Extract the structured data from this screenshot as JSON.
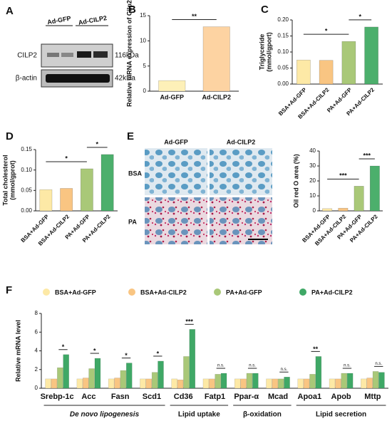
{
  "panel_labels": [
    "A",
    "B",
    "C",
    "D",
    "E",
    "F"
  ],
  "blot": {
    "lanes": [
      "Ad-GFP",
      "Ad-CILP2"
    ],
    "rows": [
      {
        "name": "CILP2",
        "size": "116kDa"
      },
      {
        "name": "β-actin",
        "size": "42kDa"
      }
    ]
  },
  "micrographs": {
    "columns": [
      "Ad-GFP",
      "Ad-CILP2"
    ],
    "rows": [
      "BSA",
      "PA"
    ]
  },
  "chart_data": [
    {
      "type": "bar",
      "ylabel": "Relative mRNA expression of Cilp2",
      "categories": [
        "Ad-GFP",
        "Ad-CILP2"
      ],
      "values": [
        2.1,
        12.8
      ],
      "colors": [
        "#fdf0b8",
        "#fdd3a2"
      ],
      "ylim": [
        0,
        15
      ],
      "yticks": [
        0,
        5,
        10,
        15
      ],
      "annotations": [
        {
          "text": "**",
          "pair": [
            "Ad-GFP",
            "Ad-CILP2"
          ]
        }
      ]
    },
    {
      "type": "bar",
      "ylabel": [
        "Triglyceride",
        "(mmol/gport)"
      ],
      "categories": [
        "BSA+Ad-GFP",
        "BSA+Ad-CILP2",
        "PA+Ad-GFP",
        "PA+Ad-CILP2"
      ],
      "values": [
        0.075,
        0.074,
        0.133,
        0.178
      ],
      "colors": [
        "#fde9a6",
        "#f9c582",
        "#a9c878",
        "#4caf6c"
      ],
      "ylim": [
        0,
        0.2
      ],
      "yticks": [
        {
          "value": 0,
          "label": "0.00"
        },
        {
          "value": 0.05,
          "label": "0.05"
        },
        {
          "value": 0.1,
          "label": "0.10"
        },
        {
          "value": 0.15,
          "label": "0.15"
        },
        {
          "value": 0.2,
          "label": "0.20"
        }
      ],
      "annotations": [
        {
          "text": "*",
          "pair": [
            "BSA+Ad-GFP",
            "PA+Ad-GFP"
          ]
        },
        {
          "text": "*",
          "pair": [
            "PA+Ad-GFP",
            "PA+Ad-CILP2"
          ]
        }
      ]
    },
    {
      "type": "bar",
      "ylabel": [
        "Total cholesterol",
        "(mmol/gprot)"
      ],
      "categories": [
        "BSA+Ad-GFP",
        "BSA+Ad-CILP2",
        "PA+Ad-GFP",
        "PA+Ad-CILP2"
      ],
      "values": [
        0.052,
        0.055,
        0.103,
        0.138
      ],
      "colors": [
        "#fde9a6",
        "#f9c582",
        "#a9c878",
        "#4caf6c"
      ],
      "ylim": [
        0,
        0.15
      ],
      "yticks": [
        {
          "value": 0,
          "label": "0.00"
        },
        {
          "value": 0.05,
          "label": "0.05"
        },
        {
          "value": 0.1,
          "label": "0.10"
        },
        {
          "value": 0.15,
          "label": "0.15"
        }
      ],
      "annotations": [
        {
          "text": "*",
          "pair": [
            "BSA+Ad-GFP",
            "PA+Ad-GFP"
          ]
        },
        {
          "text": "*",
          "pair": [
            "PA+Ad-GFP",
            "PA+Ad-CILP2"
          ]
        }
      ]
    },
    {
      "type": "bar",
      "ylabel": "Oil red O area (%)",
      "categories": [
        "BSA+Ad-GFP",
        "BSA+Ad-CILP2",
        "PA+Ad-GFP",
        "PA+Ad-CILP2"
      ],
      "values": [
        1.5,
        1.8,
        16.5,
        30
      ],
      "colors": [
        "#fde9a6",
        "#f9c582",
        "#a9c878",
        "#4caf6c"
      ],
      "ylim": [
        0,
        40
      ],
      "yticks": [
        0,
        10,
        20,
        30,
        40
      ],
      "annotations": [
        {
          "text": "***",
          "pair": [
            "BSA+Ad-GFP",
            "PA+Ad-GFP"
          ]
        },
        {
          "text": "***",
          "pair": [
            "PA+Ad-GFP",
            "PA+Ad-CILP2"
          ]
        }
      ]
    },
    {
      "type": "grouped_bar",
      "ylabel": "Relative mRNA level",
      "categories": [
        "Srebp-1c",
        "Acc",
        "Fasn",
        "Scd1",
        "Cd36",
        "Fatp1",
        "Ppar-α",
        "Mcad",
        "Apoa1",
        "Apob",
        "Mttp"
      ],
      "series": [
        {
          "name": "BSA+Ad-GFP",
          "color": "#fde9a6",
          "values": [
            1,
            1,
            1,
            1,
            1,
            1,
            1,
            1,
            1,
            1,
            1
          ]
        },
        {
          "name": "BSA+Ad-CILP2",
          "color": "#f9c582",
          "values": [
            1,
            1.1,
            1.1,
            1,
            0.9,
            1,
            1,
            1,
            1,
            1,
            1.1
          ]
        },
        {
          "name": "PA+Ad-GFP",
          "color": "#a9c878",
          "values": [
            2.2,
            2.1,
            1.9,
            1.7,
            3.4,
            1.5,
            1.6,
            1,
            1.5,
            1.6,
            1.8
          ]
        },
        {
          "name": "PA+Ad-CILP2",
          "color": "#3fa866",
          "values": [
            3.6,
            3.2,
            2.7,
            2.9,
            6.3,
            1.6,
            1.6,
            1.2,
            3.4,
            1.6,
            1.7
          ]
        }
      ],
      "significance": [
        "*",
        "*",
        "*",
        "*",
        "***",
        "n.s.",
        "n.s.",
        "n.s.",
        "**",
        "n.s.",
        "n.s."
      ],
      "groups": [
        {
          "label": "De novo lipogenesis",
          "categories": [
            "Srebp-1c",
            "Acc",
            "Fasn",
            "Scd1"
          ]
        },
        {
          "label": "Lipid uptake",
          "categories": [
            "Cd36",
            "Fatp1"
          ]
        },
        {
          "label": "β-oxidation",
          "categories": [
            "Ppar-α",
            "Mcad"
          ]
        },
        {
          "label": "Lipid secretion",
          "categories": [
            "Apoa1",
            "Apob",
            "Mttp"
          ]
        }
      ],
      "ylim": [
        0,
        8
      ],
      "yticks": [
        0,
        2,
        4,
        6,
        8
      ]
    }
  ]
}
